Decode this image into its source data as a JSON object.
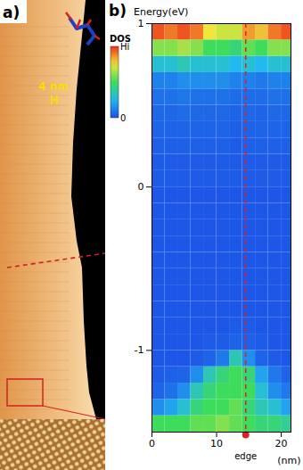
{
  "image_panel": {
    "label": "a)",
    "scale_bar": "4 nm"
  },
  "chart_data": {
    "type": "heatmap",
    "panel_label": "b)",
    "y_label": "Energy(eV)",
    "x_label": "(nm)",
    "xlim": [
      0,
      21.5
    ],
    "xticks": [
      0,
      10,
      20
    ],
    "ylim": [
      -1.5,
      1.0
    ],
    "yticks": [
      -1,
      0,
      1
    ],
    "cells": {
      "x_edges": [
        0,
        2,
        4,
        6,
        8,
        10,
        12,
        14,
        16,
        18,
        20,
        21.5
      ],
      "y_edges": [
        -1.5,
        -1.4,
        -1.3,
        -1.2,
        -1.1,
        -1.0,
        -0.9,
        -0.8,
        -0.7,
        -0.6,
        -0.5,
        -0.4,
        -0.3,
        -0.2,
        -0.1,
        0.0,
        0.1,
        0.2,
        0.3,
        0.4,
        0.5,
        0.6,
        0.7,
        0.8,
        0.9,
        1.0
      ],
      "values": [
        [
          0.5,
          0.5,
          0.5,
          0.55,
          0.55,
          0.6,
          0.55,
          0.5,
          0.45,
          0.45,
          0.4
        ],
        [
          0.15,
          0.2,
          0.3,
          0.45,
          0.5,
          0.5,
          0.55,
          0.45,
          0.35,
          0.3,
          0.2
        ],
        [
          0.05,
          0.08,
          0.15,
          0.35,
          0.45,
          0.5,
          0.5,
          0.5,
          0.3,
          0.15,
          0.1
        ],
        [
          0.03,
          0.04,
          0.05,
          0.15,
          0.35,
          0.45,
          0.5,
          0.45,
          0.2,
          0.1,
          0.05
        ],
        [
          0.02,
          0.02,
          0.02,
          0.03,
          0.05,
          0.1,
          0.35,
          0.15,
          0.05,
          0.03,
          0.02
        ],
        [
          0.02,
          0.02,
          0.02,
          0.02,
          0.03,
          0.03,
          0.05,
          0.04,
          0.03,
          0.02,
          0.02
        ],
        [
          0.02,
          0.02,
          0.02,
          0.02,
          0.02,
          0.02,
          0.03,
          0.03,
          0.02,
          0.02,
          0.02
        ],
        [
          0.02,
          0.02,
          0.02,
          0.02,
          0.02,
          0.02,
          0.02,
          0.02,
          0.02,
          0.02,
          0.02
        ],
        [
          0.02,
          0.02,
          0.02,
          0.02,
          0.02,
          0.02,
          0.02,
          0.02,
          0.02,
          0.02,
          0.02
        ],
        [
          0.02,
          0.02,
          0.02,
          0.02,
          0.02,
          0.02,
          0.02,
          0.02,
          0.02,
          0.02,
          0.02
        ],
        [
          0.02,
          0.02,
          0.02,
          0.02,
          0.02,
          0.02,
          0.02,
          0.02,
          0.02,
          0.02,
          0.02
        ],
        [
          0.02,
          0.02,
          0.02,
          0.02,
          0.02,
          0.02,
          0.02,
          0.02,
          0.02,
          0.02,
          0.02
        ],
        [
          0.02,
          0.02,
          0.02,
          0.02,
          0.02,
          0.02,
          0.02,
          0.02,
          0.02,
          0.02,
          0.02
        ],
        [
          0.02,
          0.02,
          0.02,
          0.02,
          0.02,
          0.02,
          0.02,
          0.02,
          0.02,
          0.02,
          0.02
        ],
        [
          0.02,
          0.02,
          0.02,
          0.02,
          0.02,
          0.02,
          0.02,
          0.02,
          0.02,
          0.02,
          0.02
        ],
        [
          0.03,
          0.03,
          0.03,
          0.03,
          0.03,
          0.03,
          0.03,
          0.03,
          0.03,
          0.03,
          0.03
        ],
        [
          0.03,
          0.03,
          0.03,
          0.03,
          0.03,
          0.03,
          0.03,
          0.03,
          0.03,
          0.03,
          0.03
        ],
        [
          0.04,
          0.04,
          0.04,
          0.04,
          0.04,
          0.04,
          0.03,
          0.04,
          0.04,
          0.04,
          0.04
        ],
        [
          0.05,
          0.05,
          0.05,
          0.05,
          0.05,
          0.05,
          0.04,
          0.05,
          0.05,
          0.05,
          0.05
        ],
        [
          0.06,
          0.06,
          0.07,
          0.06,
          0.06,
          0.06,
          0.05,
          0.06,
          0.05,
          0.06,
          0.06
        ],
        [
          0.08,
          0.08,
          0.09,
          0.08,
          0.08,
          0.08,
          0.07,
          0.07,
          0.07,
          0.08,
          0.08
        ],
        [
          0.12,
          0.12,
          0.15,
          0.15,
          0.15,
          0.15,
          0.12,
          0.12,
          0.1,
          0.12,
          0.12
        ],
        [
          0.3,
          0.3,
          0.35,
          0.3,
          0.3,
          0.3,
          0.25,
          0.3,
          0.25,
          0.3,
          0.3
        ],
        [
          0.6,
          0.6,
          0.65,
          0.6,
          0.5,
          0.5,
          0.45,
          0.55,
          0.5,
          0.6,
          0.6
        ],
        [
          0.95,
          0.9,
          0.95,
          0.9,
          0.75,
          0.7,
          0.7,
          0.85,
          0.8,
          0.9,
          0.95
        ]
      ]
    },
    "colorbar": {
      "label": "DOS",
      "range": [
        0,
        1
      ],
      "ticks": [
        0,
        {
          "value": 1,
          "label": "Hi"
        }
      ]
    },
    "annotations": [
      {
        "x": 14.5,
        "label": "edge"
      }
    ],
    "legend": "left"
  }
}
